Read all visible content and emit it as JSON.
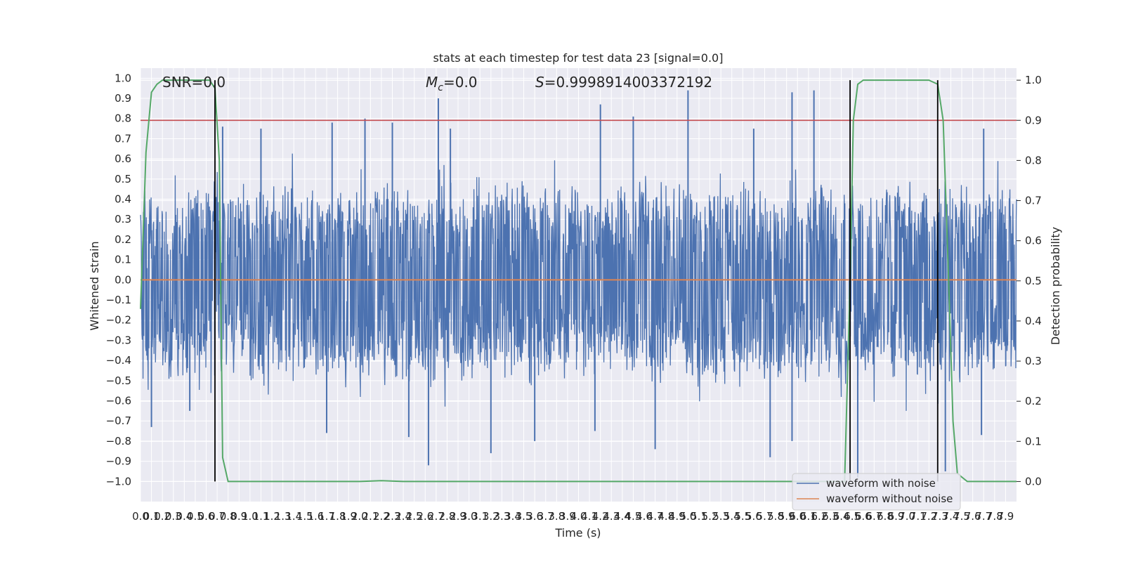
{
  "chart_data": {
    "type": "line",
    "title": "stats at each timestep for test data 23 [signal=0.0]",
    "xlabel": "Time (s)",
    "ylabel": "Whitened strain",
    "y2label": "Detection probability",
    "xlim": [
      0.0,
      8.0
    ],
    "ylim": [
      -1.1,
      1.05
    ],
    "y2lim": [
      -0.05,
      1.03
    ],
    "x_tick_step": 0.1,
    "x_tick_max": 7.9,
    "y_ticks": [
      -1.0,
      -0.9,
      -0.8,
      -0.7,
      -0.6,
      -0.5,
      -0.4,
      -0.3,
      -0.2,
      -0.1,
      0.0,
      0.1,
      0.2,
      0.3,
      0.4,
      0.5,
      0.6,
      0.7,
      0.8,
      0.9,
      1.0
    ],
    "y_tick_labels": [
      "−1.0",
      "−0.9",
      "−0.8",
      "−0.7",
      "−0.6",
      "−0.5",
      "−0.4",
      "−0.3",
      "−0.2",
      "−0.1",
      "0.0",
      "0.1",
      "0.2",
      "0.3",
      "0.4",
      "0.5",
      "0.6",
      "0.7",
      "0.8",
      "0.9",
      "1.0"
    ],
    "y2_ticks": [
      0.0,
      0.1,
      0.2,
      0.3,
      0.4,
      0.5,
      0.6,
      0.7,
      0.8,
      0.9,
      1.0
    ],
    "y2_tick_labels": [
      "0.0",
      "0.1",
      "0.2",
      "0.3",
      "0.4",
      "0.5",
      "0.6",
      "0.7",
      "0.8",
      "0.9",
      "1.0"
    ],
    "grid": true,
    "legend_position": "bottom-right",
    "annotations": {
      "snr": "SNR=0.0",
      "mc": "=0.0",
      "mc_symbol": "M",
      "mc_subscript": "c",
      "s": "=0.9998914003372192",
      "s_symbol": "S"
    },
    "threshold_y2": 0.9,
    "vertical_lines_x": [
      0.68,
      6.48,
      7.28
    ],
    "series": [
      {
        "name": "waveform with noise",
        "color": "#4c72b0",
        "noise_band": [
          -0.45,
          0.42
        ],
        "peaks": [
          {
            "x": 2.72,
            "y": 0.9
          },
          {
            "x": 4.2,
            "y": 0.87
          },
          {
            "x": 4.5,
            "y": 0.81
          },
          {
            "x": 5.0,
            "y": 0.94
          },
          {
            "x": 5.95,
            "y": 0.93
          },
          {
            "x": 6.15,
            "y": 0.94
          },
          {
            "x": 0.75,
            "y": 0.76
          },
          {
            "x": 1.1,
            "y": 0.75
          },
          {
            "x": 1.75,
            "y": 0.78
          },
          {
            "x": 2.05,
            "y": 0.8
          },
          {
            "x": 2.3,
            "y": 0.78
          },
          {
            "x": 2.83,
            "y": 0.75
          },
          {
            "x": 5.6,
            "y": 0.75
          },
          {
            "x": 7.7,
            "y": 0.75
          },
          {
            "x": 2.63,
            "y": -0.92
          },
          {
            "x": 3.2,
            "y": -0.86
          },
          {
            "x": 4.7,
            "y": -0.84
          },
          {
            "x": 5.75,
            "y": -0.88
          },
          {
            "x": 3.6,
            "y": -0.8
          },
          {
            "x": 1.7,
            "y": -0.76
          },
          {
            "x": 2.45,
            "y": -0.78
          },
          {
            "x": 4.15,
            "y": -0.75
          },
          {
            "x": 5.95,
            "y": -0.8
          },
          {
            "x": 6.55,
            "y": -0.98
          },
          {
            "x": 7.35,
            "y": -0.95
          },
          {
            "x": 7.68,
            "y": -0.77
          },
          {
            "x": 0.1,
            "y": -0.73
          },
          {
            "x": 0.45,
            "y": -0.65
          }
        ]
      },
      {
        "name": "waveform without noise",
        "color": "#dd8452",
        "y": 0.0
      },
      {
        "name": "detection probability",
        "color": "#55a868",
        "axis": "y2",
        "x": [
          0.0,
          0.05,
          0.1,
          0.15,
          0.2,
          0.3,
          0.4,
          0.5,
          0.6,
          0.63,
          0.68,
          0.72,
          0.75,
          0.8,
          1.0,
          1.5,
          2.0,
          2.2,
          2.4,
          3.0,
          4.0,
          5.0,
          6.0,
          6.43,
          6.48,
          6.51,
          6.55,
          6.6,
          7.0,
          7.2,
          7.28,
          7.33,
          7.38,
          7.42,
          7.46,
          7.55,
          7.9,
          8.0
        ],
        "y": [
          0.43,
          0.82,
          0.97,
          0.99,
          1.0,
          1.0,
          1.0,
          1.0,
          1.0,
          1.0,
          0.98,
          0.8,
          0.06,
          0.0,
          0.0,
          0.0,
          0.0,
          0.002,
          0.0,
          0.0,
          0.0,
          0.0,
          0.0,
          0.0,
          0.5,
          0.9,
          0.99,
          1.0,
          1.0,
          1.0,
          0.99,
          0.9,
          0.5,
          0.15,
          0.02,
          0.0,
          0.0,
          0.0
        ]
      }
    ],
    "threshold_color": "#c44e52",
    "vline_color": "#000000"
  }
}
